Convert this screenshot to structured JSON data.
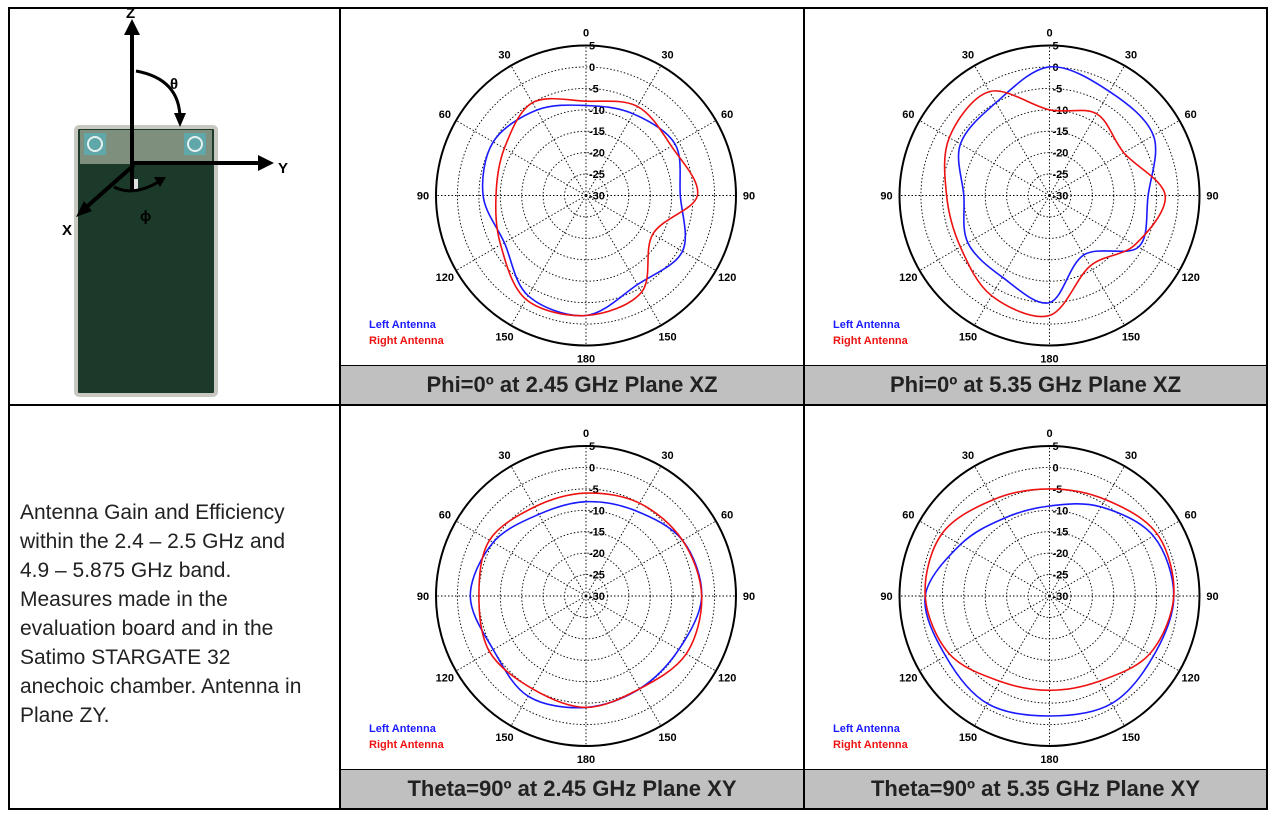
{
  "intro": {
    "axis_labels": {
      "z": "Z",
      "y": "Y",
      "x": "X",
      "theta": "θ",
      "phi": "ϕ"
    },
    "description": "Antenna Gain and Efficiency within the 2.4 – 2.5 GHz and 4.9 – 5.875 GHz band. Measures made in the evaluation board and in the Satimo STARGATE 32 anechoic chamber. Antenna in Plane ZY.",
    "pcb_color": "#1b3a29"
  },
  "chart_data": [
    {
      "type": "polar",
      "id": "p1",
      "caption": "Phi=0º at 2.45 GHz Plane XZ",
      "rlim": [
        -30,
        5
      ],
      "radial_ticks": [
        "5",
        "0",
        "-5",
        "-10",
        "-15",
        "-20",
        "-25",
        "-30"
      ],
      "angle_labels": [
        "0",
        "30",
        "60",
        "90",
        "120",
        "150",
        "180",
        "150",
        "120",
        "90",
        "60",
        "30"
      ],
      "grid": true,
      "legend": "bottom-left",
      "series": [
        {
          "name": "Left Antenna",
          "color": "#1a1aff",
          "theta": [
            0,
            30,
            60,
            90,
            120,
            150,
            180,
            210,
            240,
            270,
            300,
            330
          ],
          "r": [
            -9,
            -8,
            -6,
            -8,
            -4,
            -6,
            -2,
            -3,
            -8,
            -6,
            -5,
            -7
          ]
        },
        {
          "name": "Right Antenna",
          "color": "#ee1111",
          "theta": [
            0,
            30,
            60,
            90,
            120,
            150,
            180,
            210,
            240,
            270,
            300,
            330
          ],
          "r": [
            -8,
            -6,
            -7,
            -4,
            -12,
            -4,
            -2,
            -2,
            -7,
            -9,
            -8,
            -5
          ]
        }
      ]
    },
    {
      "type": "polar",
      "id": "p2",
      "caption": "Phi=0º at 5.35 GHz Plane XZ",
      "rlim": [
        -30,
        5
      ],
      "radial_ticks": [
        "5",
        "0",
        "-5",
        "-10",
        "-15",
        "-20",
        "-25",
        "-30"
      ],
      "angle_labels": [
        "0",
        "30",
        "60",
        "90",
        "120",
        "150",
        "180",
        "150",
        "120",
        "90",
        "60",
        "30"
      ],
      "grid": true,
      "legend": "bottom-left",
      "series": [
        {
          "name": "Left Antenna",
          "color": "#1a1aff",
          "theta": [
            0,
            30,
            60,
            90,
            120,
            150,
            180,
            210,
            240,
            270,
            300,
            330
          ],
          "r": [
            0,
            -2,
            -2,
            -7,
            -6,
            -14,
            -5,
            -8,
            -8,
            -10,
            -6,
            -5
          ]
        },
        {
          "name": "Right Antenna",
          "color": "#ee1111",
          "theta": [
            0,
            30,
            60,
            90,
            120,
            150,
            180,
            210,
            240,
            270,
            300,
            330
          ],
          "r": [
            -10,
            -8,
            -10,
            -3,
            -7,
            -11,
            -2,
            -3,
            -6,
            -6,
            -3,
            -2
          ]
        }
      ]
    },
    {
      "type": "polar",
      "id": "p3",
      "caption": "Theta=90º at 2.45 GHz Plane XY",
      "rlim": [
        -30,
        5
      ],
      "radial_ticks": [
        "5",
        "0",
        "-5",
        "-10",
        "-15",
        "-20",
        "-25",
        "-30"
      ],
      "angle_labels": [
        "0",
        "30",
        "60",
        "90",
        "120",
        "150",
        "180",
        "150",
        "120",
        "90",
        "60",
        "30"
      ],
      "grid": true,
      "legend": "bottom-left",
      "series": [
        {
          "name": "Left Antenna",
          "color": "#1a1aff",
          "theta": [
            0,
            30,
            60,
            90,
            120,
            150,
            180,
            210,
            240,
            270,
            300,
            330
          ],
          "r": [
            -8,
            -7,
            -4,
            -3,
            -5,
            -5,
            -4,
            -3,
            -5,
            -3,
            -5,
            -8
          ]
        },
        {
          "name": "Right Antenna",
          "color": "#ee1111",
          "theta": [
            0,
            30,
            60,
            90,
            120,
            150,
            180,
            210,
            240,
            270,
            300,
            330
          ],
          "r": [
            -6,
            -5,
            -4,
            -3,
            -3,
            -5,
            -4,
            -5,
            -4,
            -5,
            -4,
            -6
          ]
        }
      ]
    },
    {
      "type": "polar",
      "id": "p4",
      "caption": "Theta=90º at 5.35 GHz Plane XY",
      "rlim": [
        -30,
        5
      ],
      "radial_ticks": [
        "5",
        "0",
        "-5",
        "-10",
        "-15",
        "-20",
        "-25",
        "-30"
      ],
      "angle_labels": [
        "0",
        "30",
        "60",
        "90",
        "120",
        "150",
        "180",
        "150",
        "120",
        "90",
        "60",
        "30"
      ],
      "grid": true,
      "legend": "bottom-left",
      "series": [
        {
          "name": "Left Antenna",
          "color": "#1a1aff",
          "theta": [
            0,
            30,
            60,
            90,
            120,
            150,
            180,
            210,
            240,
            270,
            300,
            330
          ],
          "r": [
            -9,
            -6,
            -2,
            -1,
            -2,
            -1,
            -2,
            -1,
            -2,
            -1,
            -6,
            -9
          ]
        },
        {
          "name": "Right Antenna",
          "color": "#ee1111",
          "theta": [
            0,
            30,
            60,
            90,
            120,
            150,
            180,
            210,
            240,
            270,
            300,
            330
          ],
          "r": [
            -5,
            -4,
            -1,
            -1,
            -3,
            -7,
            -8,
            -7,
            -3,
            -1,
            -1,
            -4
          ]
        }
      ]
    }
  ]
}
